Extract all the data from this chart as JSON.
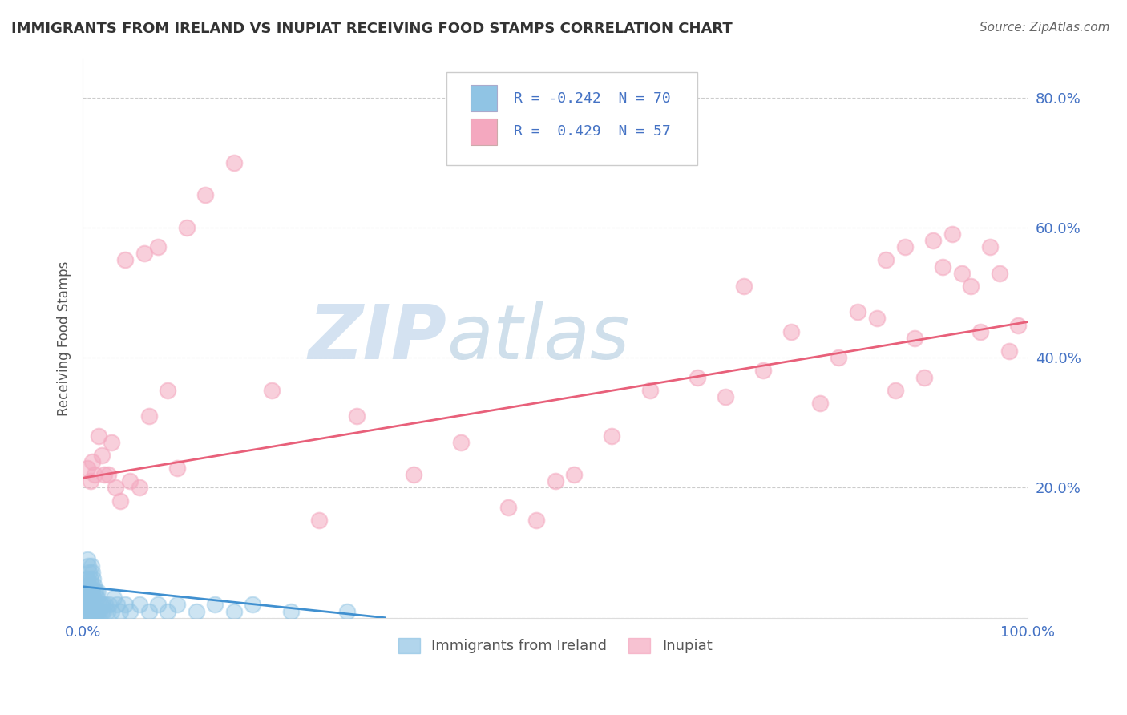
{
  "title": "IMMIGRANTS FROM IRELAND VS INUPIAT RECEIVING FOOD STAMPS CORRELATION CHART",
  "source": "Source: ZipAtlas.com",
  "ylabel": "Receiving Food Stamps",
  "xlim": [
    0.0,
    1.0
  ],
  "ylim": [
    0.0,
    0.86
  ],
  "yticks": [
    0.0,
    0.2,
    0.4,
    0.6,
    0.8
  ],
  "ytick_labels": [
    "",
    "20.0%",
    "40.0%",
    "60.0%",
    "80.0%"
  ],
  "xticks": [
    0.0,
    0.1,
    0.2,
    0.3,
    0.4,
    0.5,
    0.6,
    0.7,
    0.8,
    0.9,
    1.0
  ],
  "xtick_labels": [
    "0.0%",
    "",
    "",
    "",
    "",
    "",
    "",
    "",
    "",
    "",
    "100.0%"
  ],
  "legend_line1": "R = -0.242  N = 70",
  "legend_line2": "R =  0.429  N = 57",
  "color_blue": "#90c4e4",
  "color_pink": "#f4a8bf",
  "color_blue_line": "#4090d0",
  "color_pink_line": "#e8607a",
  "watermark_zip": "ZIP",
  "watermark_atlas": "atlas",
  "blue_scatter_x": [
    0.003,
    0.003,
    0.004,
    0.004,
    0.004,
    0.005,
    0.005,
    0.005,
    0.005,
    0.005,
    0.006,
    0.006,
    0.006,
    0.006,
    0.007,
    0.007,
    0.007,
    0.007,
    0.008,
    0.008,
    0.008,
    0.008,
    0.009,
    0.009,
    0.009,
    0.009,
    0.01,
    0.01,
    0.01,
    0.01,
    0.011,
    0.011,
    0.011,
    0.012,
    0.012,
    0.012,
    0.013,
    0.013,
    0.014,
    0.014,
    0.015,
    0.015,
    0.016,
    0.016,
    0.017,
    0.018,
    0.019,
    0.02,
    0.021,
    0.022,
    0.024,
    0.026,
    0.028,
    0.03,
    0.033,
    0.036,
    0.04,
    0.045,
    0.05,
    0.06,
    0.07,
    0.08,
    0.09,
    0.1,
    0.12,
    0.14,
    0.16,
    0.18,
    0.22,
    0.28
  ],
  "blue_scatter_y": [
    0.02,
    0.04,
    0.01,
    0.03,
    0.06,
    0.01,
    0.02,
    0.04,
    0.06,
    0.09,
    0.01,
    0.03,
    0.05,
    0.08,
    0.01,
    0.03,
    0.05,
    0.07,
    0.01,
    0.02,
    0.04,
    0.06,
    0.01,
    0.03,
    0.05,
    0.08,
    0.01,
    0.02,
    0.04,
    0.07,
    0.01,
    0.03,
    0.06,
    0.01,
    0.03,
    0.05,
    0.01,
    0.04,
    0.01,
    0.04,
    0.01,
    0.03,
    0.01,
    0.04,
    0.02,
    0.01,
    0.02,
    0.01,
    0.02,
    0.01,
    0.02,
    0.01,
    0.02,
    0.01,
    0.03,
    0.02,
    0.01,
    0.02,
    0.01,
    0.02,
    0.01,
    0.02,
    0.01,
    0.02,
    0.01,
    0.02,
    0.01,
    0.02,
    0.01,
    0.01
  ],
  "pink_scatter_x": [
    0.005,
    0.008,
    0.01,
    0.013,
    0.017,
    0.02,
    0.023,
    0.027,
    0.03,
    0.035,
    0.04,
    0.045,
    0.05,
    0.06,
    0.065,
    0.07,
    0.08,
    0.09,
    0.1,
    0.11,
    0.13,
    0.16,
    0.2,
    0.25,
    0.29,
    0.35,
    0.4,
    0.45,
    0.48,
    0.5,
    0.52,
    0.56,
    0.6,
    0.65,
    0.68,
    0.7,
    0.72,
    0.75,
    0.78,
    0.8,
    0.82,
    0.84,
    0.85,
    0.86,
    0.87,
    0.88,
    0.89,
    0.9,
    0.91,
    0.92,
    0.93,
    0.94,
    0.95,
    0.96,
    0.97,
    0.98,
    0.99
  ],
  "pink_scatter_y": [
    0.23,
    0.21,
    0.24,
    0.22,
    0.28,
    0.25,
    0.22,
    0.22,
    0.27,
    0.2,
    0.18,
    0.55,
    0.21,
    0.2,
    0.56,
    0.31,
    0.57,
    0.35,
    0.23,
    0.6,
    0.65,
    0.7,
    0.35,
    0.15,
    0.31,
    0.22,
    0.27,
    0.17,
    0.15,
    0.21,
    0.22,
    0.28,
    0.35,
    0.37,
    0.34,
    0.51,
    0.38,
    0.44,
    0.33,
    0.4,
    0.47,
    0.46,
    0.55,
    0.35,
    0.57,
    0.43,
    0.37,
    0.58,
    0.54,
    0.59,
    0.53,
    0.51,
    0.44,
    0.57,
    0.53,
    0.41,
    0.45
  ],
  "blue_line_x": [
    0.0,
    0.32
  ],
  "blue_line_y": [
    0.048,
    0.0
  ],
  "pink_line_x": [
    0.0,
    1.0
  ],
  "pink_line_y": [
    0.215,
    0.455
  ],
  "background_color": "#ffffff",
  "grid_color": "#cccccc",
  "tick_color": "#4472c4"
}
